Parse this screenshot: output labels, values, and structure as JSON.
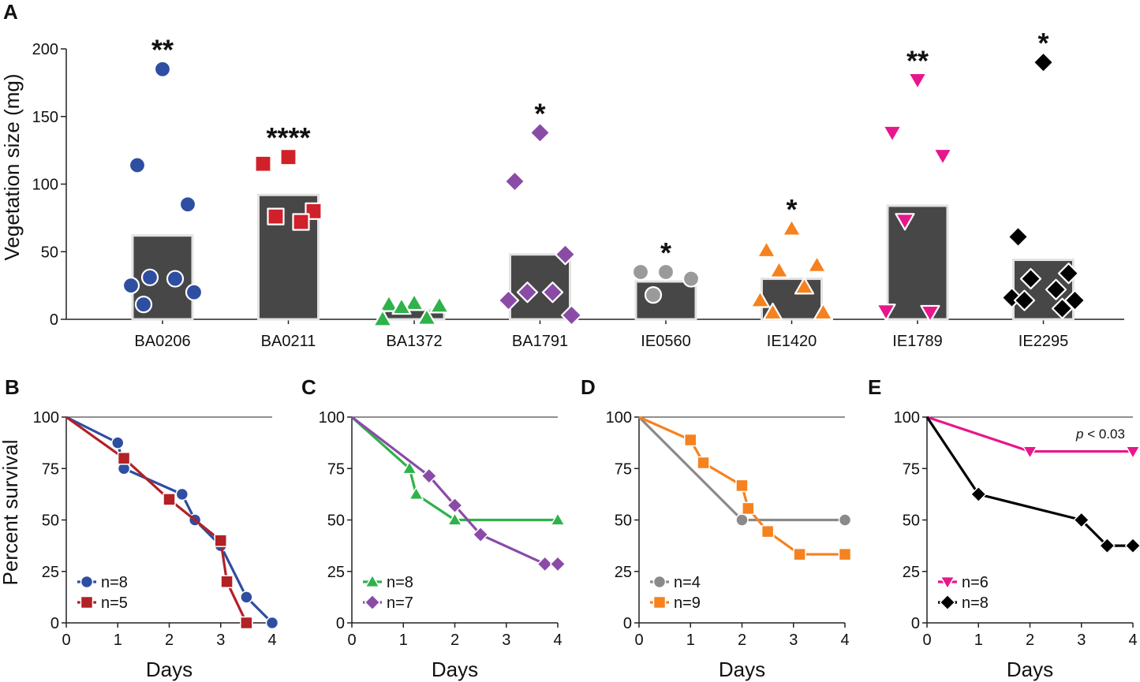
{
  "chart_data": [
    {
      "panel": "A",
      "type": "bar-scatter",
      "ylabel": "Vegetation size (mg)",
      "ylim": [
        0,
        200
      ],
      "yticks": [
        0,
        50,
        100,
        150,
        200
      ],
      "categories": [
        "BA0206",
        "BA0211",
        "BA1372",
        "BA1791",
        "IE0560",
        "IE1420",
        "IE1789",
        "IE2295"
      ],
      "bar_values": [
        62,
        92,
        7,
        48,
        28,
        30,
        84,
        44
      ],
      "significance": [
        "**",
        "****",
        "",
        "*",
        "*",
        "*",
        "**",
        "*"
      ],
      "colors": [
        "#2e4ea1",
        "#d0202a",
        "#2fb24a",
        "#8a4ba6",
        "#9a9a9a",
        "#f5821f",
        "#e8168b",
        "#000000"
      ],
      "markers": [
        "circle",
        "square",
        "triangle-up",
        "diamond",
        "circle",
        "triangle-up",
        "triangle-down",
        "diamond"
      ],
      "points": [
        [
          185,
          114,
          85,
          31,
          30,
          25,
          20,
          11
        ],
        [
          120,
          115,
          80,
          76,
          72
        ],
        [
          12,
          11,
          10,
          9,
          1,
          0
        ],
        [
          138,
          102,
          48,
          20,
          20,
          14,
          3
        ],
        [
          35,
          35,
          30,
          18
        ],
        [
          67,
          51,
          40,
          36,
          24,
          14,
          5,
          5
        ],
        [
          177,
          138,
          121,
          73,
          5,
          6
        ],
        [
          190,
          61,
          34,
          30,
          22,
          16,
          14,
          14,
          8
        ]
      ]
    },
    {
      "panel": "B",
      "type": "line",
      "xlabel": "Days",
      "ylabel": "Percent survival",
      "xlim": [
        0,
        4
      ],
      "ylim": [
        0,
        100
      ],
      "xticks": [
        0,
        1,
        2,
        3,
        4
      ],
      "yticks": [
        0,
        25,
        50,
        75,
        100
      ],
      "series": [
        {
          "name": "n=8",
          "color": "#2e4ea1",
          "marker": "circle",
          "x": [
            0,
            1,
            1.12,
            2.25,
            2.5,
            3,
            3.5,
            4
          ],
          "y": [
            100,
            87.5,
            75,
            62.5,
            50,
            37.5,
            12.5,
            0
          ]
        },
        {
          "name": "n=5",
          "color": "#b22125",
          "marker": "square",
          "x": [
            0,
            1.12,
            2,
            3,
            3.12,
            3.5
          ],
          "y": [
            100,
            80,
            60,
            40,
            20,
            0
          ]
        }
      ]
    },
    {
      "panel": "C",
      "type": "line",
      "xlabel": "Days",
      "xlim": [
        0,
        4
      ],
      "ylim": [
        0,
        100
      ],
      "xticks": [
        0,
        1,
        2,
        3,
        4
      ],
      "yticks": [
        0,
        25,
        50,
        75,
        100
      ],
      "series": [
        {
          "name": "n=8",
          "color": "#2fb24a",
          "marker": "triangle-up",
          "x": [
            0,
            1.12,
            1.25,
            2,
            4
          ],
          "y": [
            100,
            75,
            62.5,
            50,
            50
          ]
        },
        {
          "name": "n=7",
          "color": "#8a4ba6",
          "marker": "diamond",
          "x": [
            0,
            1.5,
            2,
            2.5,
            3.75,
            4
          ],
          "y": [
            100,
            71.4,
            57.1,
            42.9,
            28.6,
            28.6
          ]
        }
      ]
    },
    {
      "panel": "D",
      "type": "line",
      "xlabel": "Days",
      "xlim": [
        0,
        4
      ],
      "ylim": [
        0,
        100
      ],
      "xticks": [
        0,
        1,
        2,
        3,
        4
      ],
      "yticks": [
        0,
        25,
        50,
        75,
        100
      ],
      "series": [
        {
          "name": "n=4",
          "color": "#8a8a8a",
          "marker": "circle",
          "x": [
            0,
            2,
            4
          ],
          "y": [
            100,
            50,
            50
          ]
        },
        {
          "name": "n=9",
          "color": "#f5821f",
          "marker": "square",
          "x": [
            0,
            1,
            1.25,
            2,
            2.12,
            2.5,
            3.12,
            4
          ],
          "y": [
            100,
            88.9,
            77.8,
            66.7,
            55.6,
            44.4,
            33.3,
            33.3
          ]
        }
      ]
    },
    {
      "panel": "E",
      "type": "line",
      "xlabel": "Days",
      "xlim": [
        0,
        4
      ],
      "ylim": [
        0,
        100
      ],
      "xticks": [
        0,
        1,
        2,
        3,
        4
      ],
      "yticks": [
        0,
        25,
        50,
        75,
        100
      ],
      "annotation_prefix": "p",
      "annotation_value": " < 0.03",
      "series": [
        {
          "name": "n=6",
          "color": "#e8168b",
          "marker": "triangle-down",
          "x": [
            0,
            2,
            4
          ],
          "y": [
            100,
            83.3,
            83.3
          ]
        },
        {
          "name": "n=8",
          "color": "#000000",
          "marker": "diamond",
          "x": [
            0,
            1,
            3,
            3.5,
            4
          ],
          "y": [
            100,
            62.5,
            50,
            37.5,
            37.5
          ]
        }
      ]
    }
  ]
}
